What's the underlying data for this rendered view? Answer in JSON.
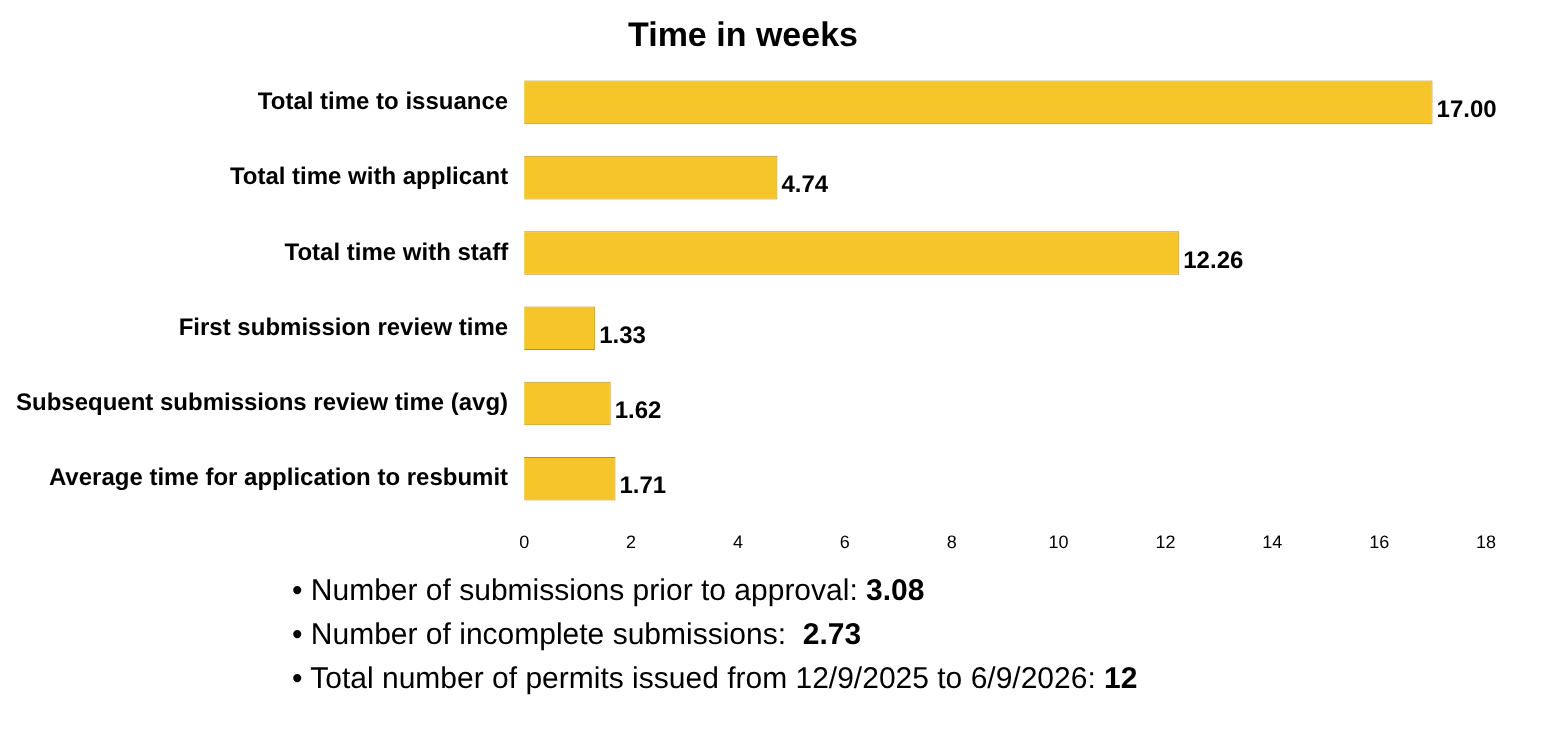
{
  "chart_data": {
    "type": "bar",
    "orientation": "horizontal",
    "title": "Time in weeks",
    "categories": [
      "Total time to issuance",
      "Total time with applicant",
      "Total time with staff",
      "First submission review time",
      "Subsequent submissions review time (avg)",
      "Average time for application to resbumit"
    ],
    "values": [
      17.0,
      4.74,
      12.26,
      1.33,
      1.62,
      1.71
    ],
    "color": "#f5c52a",
    "xlim": [
      0,
      18
    ],
    "xticks": [
      0,
      2,
      4,
      6,
      8,
      10,
      12,
      14,
      16,
      18
    ],
    "grid": false,
    "legend": false,
    "value_labels": [
      "17.00",
      "4.74",
      "12.26",
      "1.33",
      "1.62",
      "1.71"
    ],
    "annotations": [
      "• Number of submissions prior to approval: 3.08",
      "• Number of incomplete submissions:  2.73",
      "• Total number of permits issued from 12/9/2025 to 6/9/2026: 12"
    ]
  }
}
